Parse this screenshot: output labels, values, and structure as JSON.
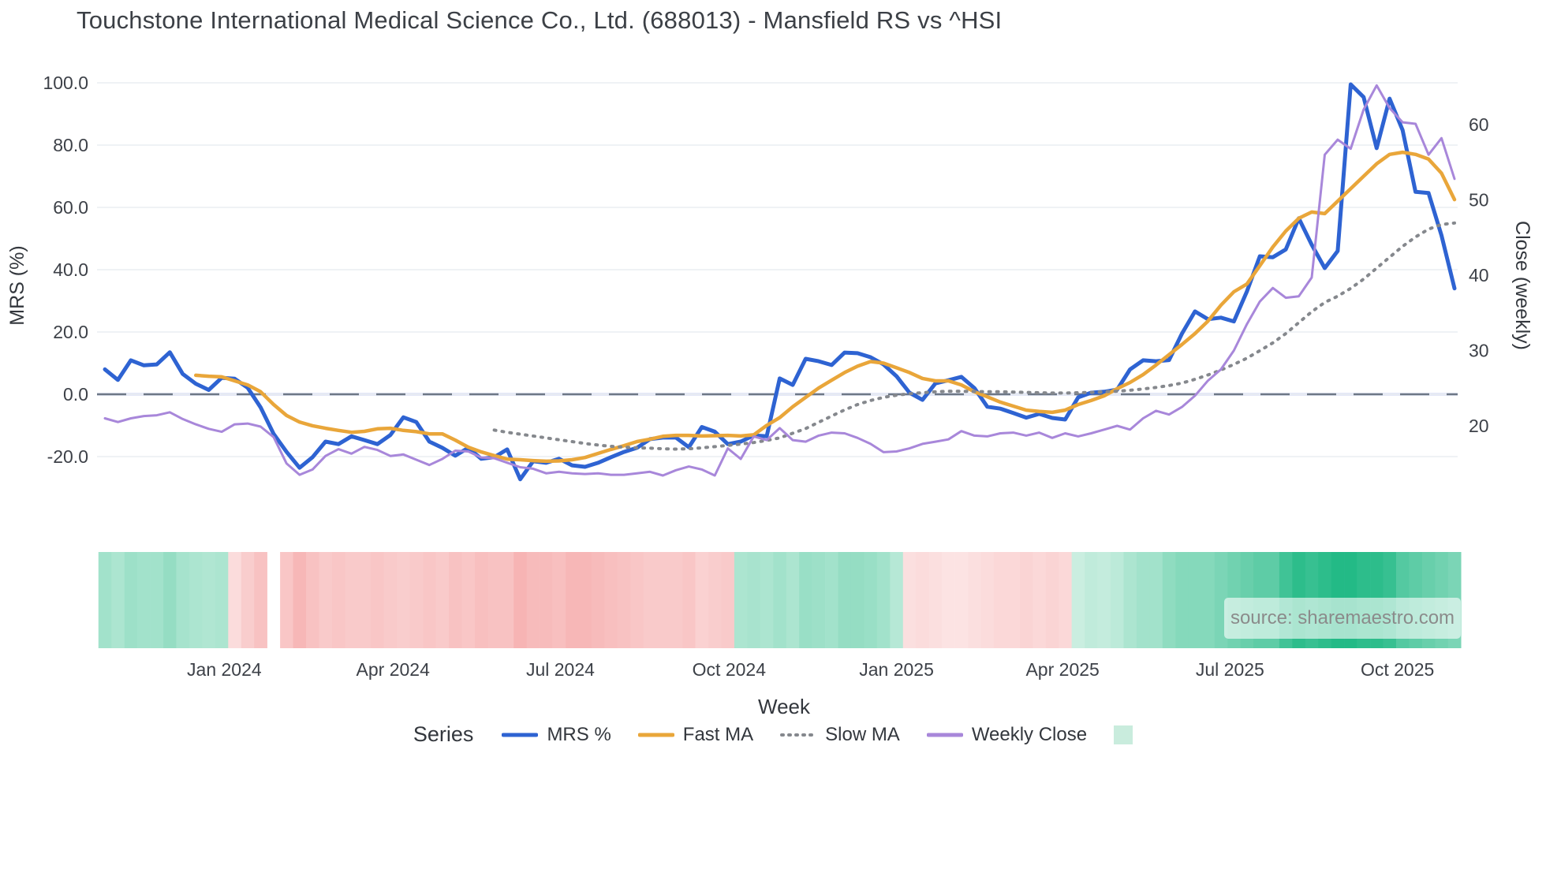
{
  "title": "Touchstone International Medical Science Co., Ltd. (688013) - Mansfield RS vs ^HSI",
  "watermark": "source: sharemaestro.com",
  "legend": {
    "title": "Series",
    "items": [
      {
        "label": "MRS %",
        "swatch": "line",
        "color": "#2e63d2"
      },
      {
        "label": "Fast MA",
        "swatch": "line",
        "color": "#e9a63a"
      },
      {
        "label": "Slow MA",
        "swatch": "dotted",
        "color": "#85888d"
      },
      {
        "label": "Weekly Close",
        "swatch": "line",
        "color": "#a887da"
      },
      {
        "label": "",
        "swatch": "square",
        "color": "#c9ecdd"
      }
    ]
  },
  "colors": {
    "mrs": "#2e63d2",
    "fast_ma": "#e9a63a",
    "slow_ma": "#85888d",
    "weekly_close": "#a887da",
    "zero_dash": "#6e7886",
    "zero_band": "#dbe0f5",
    "gridline": "#eaedf2",
    "tick_text": "#3d4148",
    "axis_title_text": "#33373d",
    "heat_green_light": "#e7f7f0",
    "heat_green_dark": "#23ba86",
    "heat_red_light": "#fdeeee",
    "heat_red_deep": "#f5a5a5"
  },
  "chart_data": {
    "type": "line",
    "title": "Touchstone International Medical Science Co., Ltd. (688013) - Mansfield RS vs ^HSI",
    "x_axis": {
      "label": "Week",
      "tick_labels": [
        "Jan 2024",
        "Apr 2024",
        "Jul 2024",
        "Oct 2024",
        "Jan 2025",
        "Apr 2025",
        "Jul 2025",
        "Oct 2025"
      ],
      "tick_weeks": [
        9.2,
        22.2,
        35.1,
        48.1,
        61.0,
        73.8,
        86.7,
        99.6
      ],
      "n_weeks": 105
    },
    "y_left": {
      "label": "MRS (%)",
      "tick_values": [
        100,
        80,
        60,
        40,
        20,
        0,
        -20
      ],
      "tick_labels": [
        "100.0",
        "80.0",
        "60.0",
        "40.0",
        "20.0",
        "0.0",
        "-20.0"
      ],
      "zero_line": 0
    },
    "y_right": {
      "label": "Close (weekly)",
      "tick_values": [
        60,
        50,
        40,
        30,
        20
      ],
      "tick_labels": [
        "60",
        "50",
        "40",
        "30",
        "20"
      ]
    },
    "series": [
      {
        "name": "MRS %",
        "axis": "left",
        "style": "solid",
        "color": "#2e63d2",
        "width": 5,
        "values": [
          8.0,
          4.6,
          10.9,
          9.3,
          9.6,
          13.5,
          6.5,
          3.4,
          1.4,
          5.3,
          5.0,
          2.1,
          -4.2,
          -12.7,
          -18.5,
          -23.6,
          -20.2,
          -15.2,
          -16.0,
          -13.5,
          -14.7,
          -16.0,
          -13.1,
          -7.4,
          -8.9,
          -15.2,
          -17.2,
          -19.7,
          -17.2,
          -20.7,
          -20.2,
          -17.7,
          -27.3,
          -21.5,
          -22.0,
          -20.7,
          -22.8,
          -23.3,
          -22.0,
          -20.2,
          -18.5,
          -17.2,
          -14.4,
          -13.9,
          -13.9,
          -17.0,
          -10.5,
          -12.0,
          -16.0,
          -15.2,
          -13.2,
          -13.5,
          5.1,
          3.0,
          11.4,
          10.6,
          9.4,
          13.4,
          13.2,
          11.9,
          9.6,
          5.8,
          0.5,
          -1.8,
          3.5,
          4.5,
          5.6,
          2.0,
          -4.0,
          -4.6,
          -6.0,
          -7.5,
          -6.3,
          -7.6,
          -8.1,
          -1.0,
          0.5,
          0.8,
          1.5,
          8.0,
          10.9,
          10.6,
          11.0,
          19.5,
          26.6,
          24.1,
          24.6,
          23.4,
          33.0,
          44.3,
          44.0,
          46.5,
          56.5,
          48.0,
          40.5,
          46.0,
          99.5,
          95.4,
          79.0,
          94.9,
          84.8,
          65.0,
          64.6,
          51.0,
          34.0
        ]
      },
      {
        "name": "Fast MA",
        "axis": "left",
        "style": "solid",
        "color": "#e9a63a",
        "width": 4.5,
        "values": [
          null,
          null,
          null,
          null,
          null,
          null,
          null,
          6.1,
          5.8,
          5.6,
          4.3,
          3.0,
          0.8,
          -3.3,
          -6.8,
          -8.9,
          -10.1,
          -10.9,
          -11.6,
          -12.2,
          -11.9,
          -11.1,
          -10.9,
          -11.6,
          -12.0,
          -12.7,
          -12.7,
          -14.7,
          -17.0,
          -18.5,
          -19.7,
          -20.8,
          -21.0,
          -21.3,
          -21.5,
          -21.4,
          -21.0,
          -20.3,
          -19.0,
          -17.7,
          -16.5,
          -15.2,
          -14.4,
          -13.5,
          -13.2,
          -13.2,
          -13.4,
          -13.3,
          -13.2,
          -13.4,
          -13.0,
          -10.0,
          -7.5,
          -4.0,
          -1.0,
          2.0,
          4.5,
          7.0,
          9.0,
          10.5,
          10.0,
          8.5,
          7.0,
          5.1,
          4.3,
          4.3,
          3.0,
          0.8,
          -0.8,
          -2.5,
          -3.8,
          -5.1,
          -5.5,
          -5.8,
          -5.1,
          -3.3,
          -2.0,
          -0.5,
          1.8,
          3.8,
          6.3,
          9.4,
          12.7,
          16.0,
          19.5,
          23.5,
          28.6,
          32.9,
          35.4,
          41.3,
          47.3,
          52.4,
          56.5,
          58.5,
          58.0,
          62.0,
          66.0,
          70.0,
          74.0,
          77.0,
          77.7,
          77.0,
          75.5,
          71.0,
          62.5
        ]
      },
      {
        "name": "Slow MA",
        "axis": "left",
        "style": "dotted",
        "color": "#85888d",
        "width": 4,
        "values": [
          null,
          null,
          null,
          null,
          null,
          null,
          null,
          null,
          null,
          null,
          null,
          null,
          null,
          null,
          null,
          null,
          null,
          null,
          null,
          null,
          null,
          null,
          null,
          null,
          null,
          null,
          null,
          null,
          null,
          null,
          -11.5,
          -12.2,
          -12.8,
          -13.4,
          -14.0,
          -14.6,
          -15.2,
          -15.8,
          -16.3,
          -16.7,
          -17.0,
          -17.2,
          -17.3,
          -17.5,
          -17.6,
          -17.5,
          -17.2,
          -16.8,
          -16.4,
          -16.0,
          -15.5,
          -14.8,
          -14.0,
          -12.5,
          -11.0,
          -9.0,
          -7.0,
          -5.0,
          -3.3,
          -2.0,
          -1.0,
          -0.3,
          0.2,
          0.5,
          0.8,
          1.0,
          1.0,
          0.9,
          0.8,
          0.8,
          0.7,
          0.6,
          0.5,
          0.4,
          0.4,
          0.5,
          0.6,
          0.8,
          1.0,
          1.3,
          1.7,
          2.2,
          2.8,
          3.6,
          4.8,
          6.2,
          7.8,
          9.6,
          11.6,
          14.0,
          16.5,
          19.5,
          23.0,
          26.5,
          29.5,
          31.5,
          34.0,
          37.0,
          40.5,
          44.0,
          47.5,
          50.5,
          53.0,
          54.5,
          55.0
        ]
      },
      {
        "name": "Weekly Close",
        "axis": "right",
        "style": "solid",
        "color": "#a887da",
        "width": 3,
        "values": [
          21.0,
          20.5,
          21.0,
          21.3,
          21.4,
          21.8,
          20.9,
          20.2,
          19.6,
          19.2,
          20.2,
          20.3,
          19.9,
          18.5,
          15.0,
          13.5,
          14.2,
          16.0,
          16.9,
          16.3,
          17.2,
          16.8,
          16.0,
          16.2,
          15.5,
          14.8,
          15.6,
          16.7,
          16.6,
          15.8,
          15.7,
          15.1,
          14.5,
          14.3,
          13.7,
          13.9,
          13.7,
          13.6,
          13.7,
          13.5,
          13.5,
          13.7,
          13.9,
          13.4,
          14.1,
          14.6,
          14.2,
          13.4,
          17.0,
          15.6,
          18.6,
          18.1,
          19.7,
          18.1,
          17.9,
          18.7,
          19.1,
          19.0,
          18.4,
          17.6,
          16.5,
          16.6,
          17.0,
          17.6,
          17.9,
          18.2,
          19.3,
          18.7,
          18.6,
          19.0,
          19.1,
          18.7,
          19.1,
          18.4,
          19.0,
          18.6,
          19.0,
          19.5,
          20.0,
          19.5,
          21.0,
          22.0,
          21.5,
          22.5,
          24.0,
          26.0,
          27.5,
          30.0,
          33.5,
          36.5,
          38.3,
          37.0,
          37.2,
          39.7,
          56.0,
          58.0,
          56.8,
          62.0,
          65.2,
          62.2,
          60.3,
          60.1,
          56.0,
          58.2,
          52.8
        ]
      }
    ],
    "heatmap": {
      "description": "weekly relative-strength heat strip, signed intensity -1 (deep red) to +1 (dark green), 0 = blank gap",
      "cells": [
        0.35,
        0.3,
        0.38,
        0.35,
        0.35,
        0.42,
        0.33,
        0.3,
        0.28,
        0.3,
        -0.25,
        -0.45,
        -0.6,
        0,
        -0.55,
        -0.75,
        -0.6,
        -0.5,
        -0.55,
        -0.5,
        -0.5,
        -0.55,
        -0.5,
        -0.45,
        -0.5,
        -0.55,
        -0.5,
        -0.6,
        -0.55,
        -0.65,
        -0.6,
        -0.6,
        -0.8,
        -0.7,
        -0.7,
        -0.65,
        -0.75,
        -0.75,
        -0.7,
        -0.65,
        -0.6,
        -0.55,
        -0.5,
        -0.5,
        -0.5,
        -0.55,
        -0.4,
        -0.45,
        -0.5,
        0.3,
        0.32,
        0.3,
        0.35,
        0.3,
        0.4,
        0.38,
        0.35,
        0.42,
        0.42,
        0.4,
        0.35,
        0.25,
        -0.2,
        -0.25,
        -0.2,
        -0.15,
        -0.15,
        -0.2,
        -0.25,
        -0.3,
        -0.3,
        -0.35,
        -0.3,
        -0.35,
        -0.3,
        0.15,
        0.2,
        0.18,
        0.22,
        0.3,
        0.35,
        0.35,
        0.45,
        0.5,
        0.5,
        0.5,
        0.55,
        0.6,
        0.65,
        0.7,
        0.7,
        0.85,
        0.95,
        0.9,
        0.95,
        1.0,
        1.0,
        0.95,
        0.95,
        0.9,
        0.75,
        0.7,
        0.65,
        0.6,
        0.55
      ]
    }
  }
}
